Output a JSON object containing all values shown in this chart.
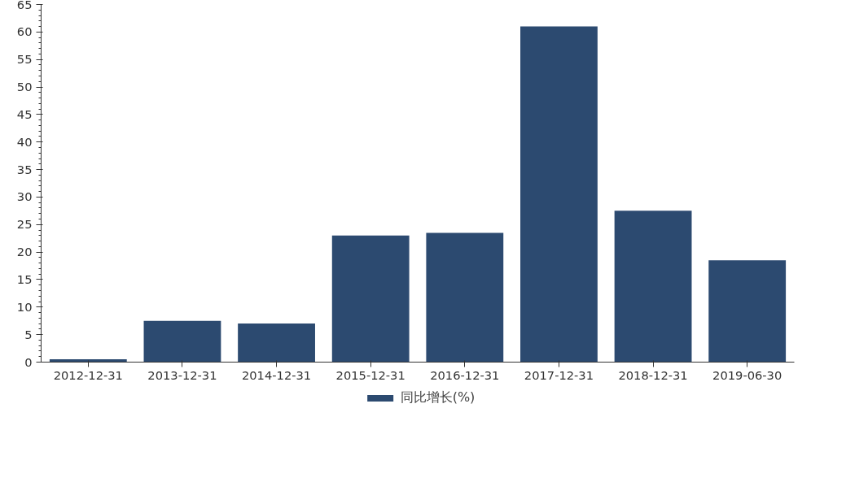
{
  "chart_data": {
    "type": "bar",
    "categories": [
      "2012-12-31",
      "2013-12-31",
      "2014-12-31",
      "2015-12-31",
      "2016-12-31",
      "2017-12-31",
      "2018-12-31",
      "2019-06-30"
    ],
    "series": [
      {
        "name": "同比增长(%)",
        "color": "#2c4a70",
        "values": [
          0.5,
          7.5,
          7,
          23,
          23.5,
          61,
          27.5,
          18.5
        ]
      }
    ],
    "ylim": [
      0,
      65
    ],
    "yticks": [
      0,
      5,
      10,
      15,
      20,
      25,
      30,
      35,
      40,
      45,
      50,
      55,
      60,
      65
    ],
    "grid": false,
    "legend": "bottom"
  }
}
